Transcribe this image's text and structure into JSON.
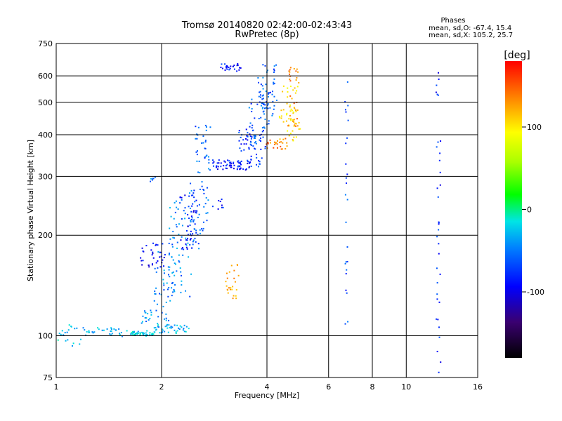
{
  "chart_data": {
    "type": "scatter",
    "title": "Tromsø 20140820 02:42:00-02:43:43",
    "subtitle": "RwPretec (8p)",
    "xlabel": "Frequency [MHz]",
    "ylabel": "Stationary phase Virtual Height [km]",
    "x_scale": "log",
    "y_scale": "log",
    "xlim": [
      1,
      16
    ],
    "ylim": [
      75,
      750
    ],
    "x_ticks": [
      1,
      2,
      4,
      6,
      8,
      10,
      16
    ],
    "x_tick_labels": [
      "1",
      "2",
      "4",
      "6",
      "8",
      "10",
      "16"
    ],
    "y_ticks": [
      75,
      100,
      200,
      300,
      400,
      500,
      600,
      750
    ],
    "y_tick_labels": [
      "75",
      "100",
      "200",
      "300",
      "400",
      "500",
      "600",
      "750"
    ],
    "grid": true,
    "legend": {
      "heading": "Phases",
      "lines": [
        "mean, sd,O: -67.4, 15.4",
        "mean, sd,X: 105.2, 25.7"
      ],
      "placement": "top-right"
    },
    "colorbar": {
      "label": "[deg]",
      "range": [
        -180,
        180
      ],
      "ticks": [
        100,
        0,
        -100
      ],
      "tick_labels": [
        "100",
        "0",
        "-100"
      ]
    },
    "trace_segments": [
      {
        "f0": 1.0,
        "f1": 1.18,
        "h0": 93,
        "h1": 108,
        "phase": -40,
        "n": 20
      },
      {
        "f0": 1.2,
        "f1": 1.55,
        "h0": 100,
        "h1": 106,
        "phase": -45,
        "n": 30
      },
      {
        "f0": 1.55,
        "f1": 1.9,
        "h0": 100,
        "h1": 103,
        "phase": -40,
        "n": 40
      },
      {
        "f0": 1.9,
        "f1": 2.4,
        "h0": 102,
        "h1": 108,
        "phase": -45,
        "n": 40
      },
      {
        "f0": 1.75,
        "f1": 2.1,
        "h0": 108,
        "h1": 120,
        "phase": -55,
        "n": 25
      },
      {
        "f0": 1.9,
        "f1": 2.2,
        "h0": 120,
        "h1": 185,
        "phase": -60,
        "n": 40
      },
      {
        "f0": 1.75,
        "f1": 2.05,
        "h0": 160,
        "h1": 190,
        "phase": -100,
        "n": 35
      },
      {
        "f0": 2.1,
        "f1": 2.45,
        "h0": 130,
        "h1": 260,
        "phase": -60,
        "n": 60
      },
      {
        "f0": 2.25,
        "f1": 2.55,
        "h0": 180,
        "h1": 270,
        "phase": -95,
        "n": 45
      },
      {
        "f0": 2.4,
        "f1": 2.72,
        "h0": 180,
        "h1": 290,
        "phase": -70,
        "n": 50
      },
      {
        "f0": 2.5,
        "f1": 2.75,
        "h0": 290,
        "h1": 460,
        "phase": -70,
        "n": 35
      },
      {
        "f0": 1.85,
        "f1": 1.95,
        "h0": 290,
        "h1": 298,
        "phase": -60,
        "n": 6
      },
      {
        "f0": 2.8,
        "f1": 3.6,
        "h0": 315,
        "h1": 335,
        "phase": -95,
        "n": 60
      },
      {
        "f0": 3.3,
        "f1": 3.9,
        "h0": 320,
        "h1": 420,
        "phase": -85,
        "n": 55
      },
      {
        "f0": 3.55,
        "f1": 4.1,
        "h0": 360,
        "h1": 540,
        "phase": -75,
        "n": 55
      },
      {
        "f0": 3.75,
        "f1": 4.25,
        "h0": 450,
        "h1": 650,
        "phase": -70,
        "n": 45
      },
      {
        "f0": 4.0,
        "f1": 4.6,
        "h0": 360,
        "h1": 390,
        "phase": 140,
        "n": 25
      },
      {
        "f0": 4.35,
        "f1": 4.95,
        "h0": 380,
        "h1": 560,
        "phase": 100,
        "n": 55
      },
      {
        "f0": 4.6,
        "f1": 4.95,
        "h0": 420,
        "h1": 640,
        "phase": 135,
        "n": 30
      },
      {
        "f0": 2.95,
        "f1": 3.4,
        "h0": 620,
        "h1": 650,
        "phase": -95,
        "n": 25
      },
      {
        "f0": 3.05,
        "f1": 3.3,
        "h0": 128,
        "h1": 165,
        "phase": 125,
        "n": 25
      },
      {
        "f0": 2.8,
        "f1": 3.0,
        "h0": 240,
        "h1": 265,
        "phase": -90,
        "n": 8
      },
      {
        "f0": 6.7,
        "f1": 6.8,
        "h0": 100,
        "h1": 600,
        "phase": -80,
        "n": 25
      },
      {
        "f0": 12.2,
        "f1": 12.5,
        "h0": 75,
        "h1": 640,
        "phase": -90,
        "n": 35
      }
    ]
  }
}
